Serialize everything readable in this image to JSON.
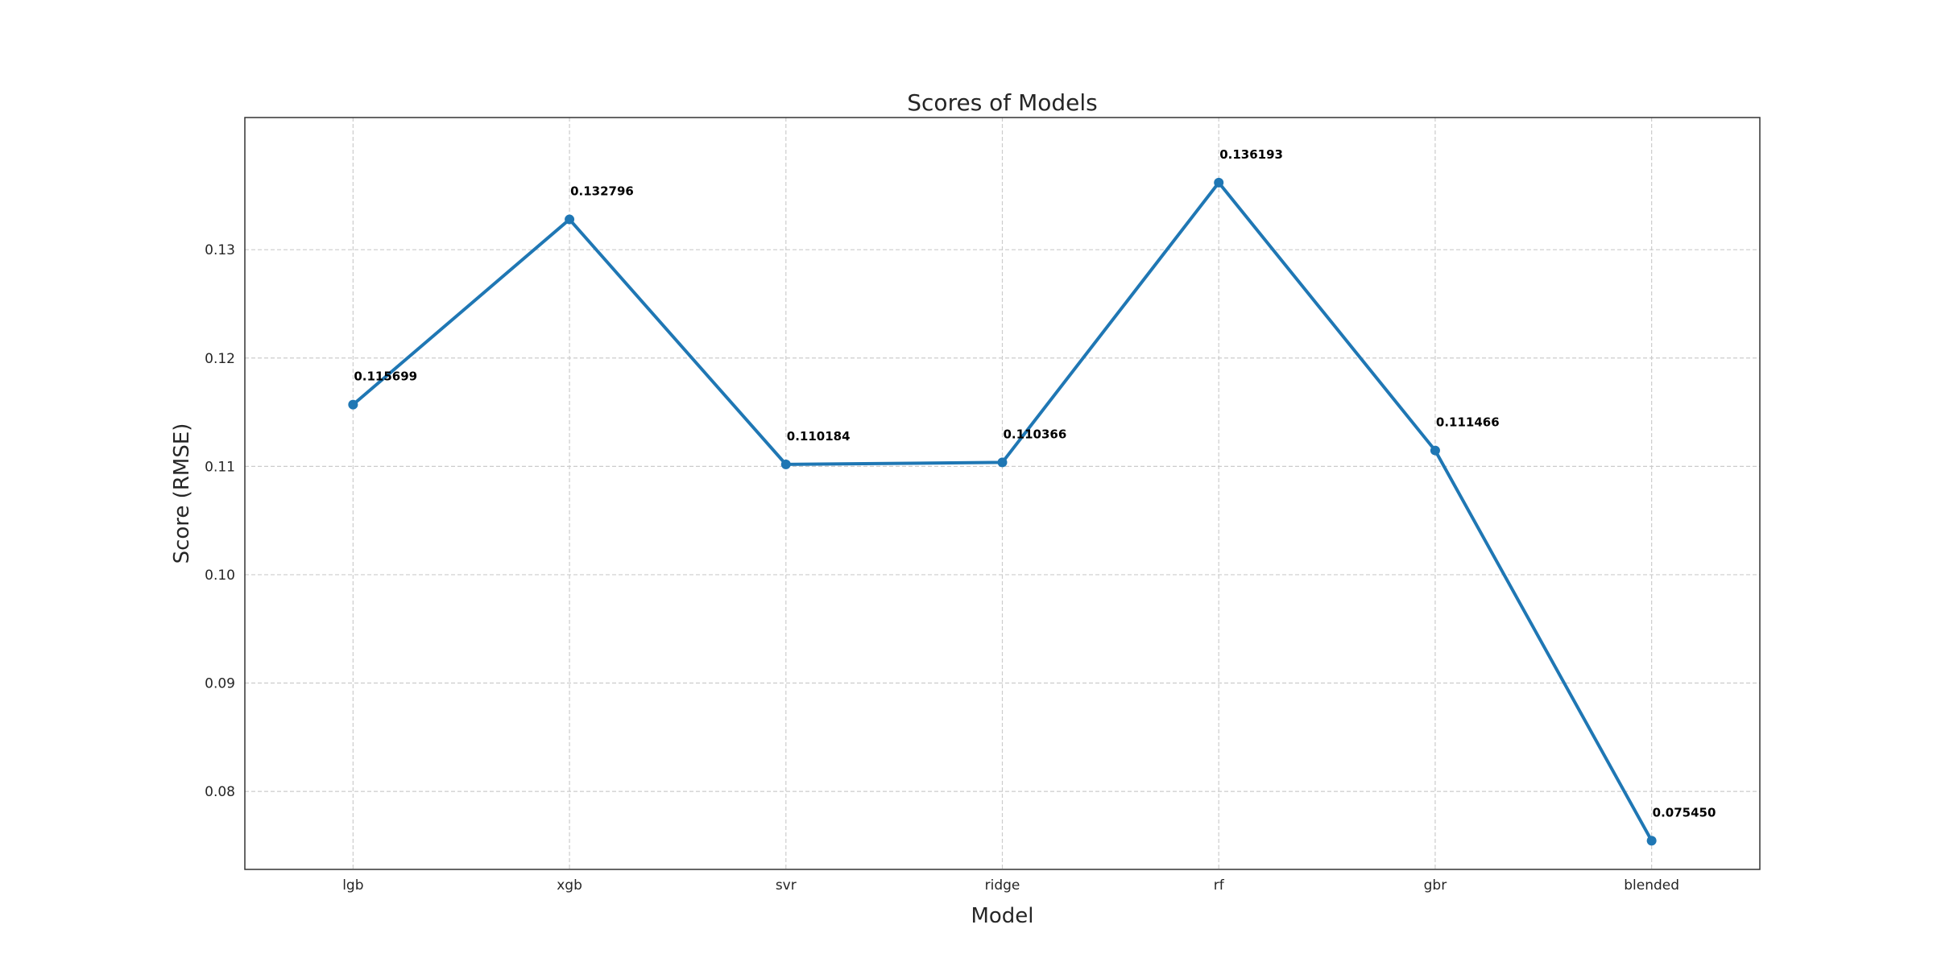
{
  "chart_data": {
    "type": "line",
    "title": "Scores of Models",
    "xlabel": "Model",
    "ylabel": "Score (RMSE)",
    "categories": [
      "lgb",
      "xgb",
      "svr",
      "ridge",
      "rf",
      "gbr",
      "blended"
    ],
    "series": [
      {
        "values": [
          0.115699,
          0.132796,
          0.110184,
          0.110366,
          0.136193,
          0.111466,
          0.07545
        ],
        "color": "#1f77b4",
        "marker": "circle"
      }
    ],
    "data_labels": [
      "0.115699",
      "0.132796",
      "0.110184",
      "0.110366",
      "0.136193",
      "0.111466",
      "0.075450"
    ],
    "yticks": [
      0.08,
      0.09,
      0.1,
      0.11,
      0.12,
      0.13
    ],
    "ytick_labels": [
      "0.08",
      "0.09",
      "0.10",
      "0.11",
      "0.12",
      "0.13"
    ],
    "ylim": [
      0.0728,
      0.1422
    ],
    "grid": true,
    "grid_style": "dashed",
    "legend": false
  }
}
